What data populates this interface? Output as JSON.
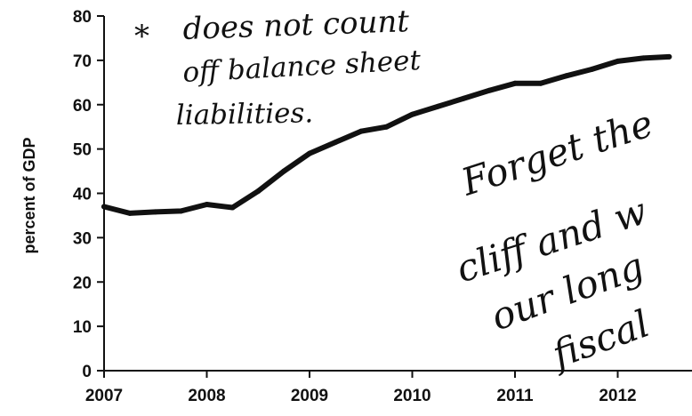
{
  "chart_data": {
    "type": "line",
    "title": "",
    "xlabel": "",
    "ylabel": "percent of GDP",
    "xlim": [
      2007,
      2012.6
    ],
    "ylim": [
      0,
      80
    ],
    "x_ticks": [
      {
        "value": 2007,
        "label": "2007"
      },
      {
        "value": 2008,
        "label": "2008"
      },
      {
        "value": 2009,
        "label": "2009"
      },
      {
        "value": 2010,
        "label": "2010"
      },
      {
        "value": 2011,
        "label": "2011"
      },
      {
        "value": 2012,
        "label": "2012"
      }
    ],
    "y_ticks": [
      {
        "value": 0,
        "label": "0"
      },
      {
        "value": 10,
        "label": "10"
      },
      {
        "value": 20,
        "label": "20"
      },
      {
        "value": 30,
        "label": "30"
      },
      {
        "value": 40,
        "label": "40"
      },
      {
        "value": 50,
        "label": "50"
      },
      {
        "value": 60,
        "label": "60"
      },
      {
        "value": 70,
        "label": "70"
      },
      {
        "value": 80,
        "label": "80"
      }
    ],
    "grid": false,
    "series": [
      {
        "points": [
          [
            2007.0,
            37.0
          ],
          [
            2007.25,
            35.5
          ],
          [
            2007.5,
            35.8
          ],
          [
            2007.75,
            36.0
          ],
          [
            2008.0,
            37.5
          ],
          [
            2008.25,
            36.8
          ],
          [
            2008.5,
            40.5
          ],
          [
            2008.75,
            45.0
          ],
          [
            2009.0,
            49.0
          ],
          [
            2009.25,
            51.5
          ],
          [
            2009.5,
            54.0
          ],
          [
            2009.75,
            55.0
          ],
          [
            2010.0,
            57.8
          ],
          [
            2010.25,
            59.6
          ],
          [
            2010.5,
            61.4
          ],
          [
            2010.75,
            63.2
          ],
          [
            2011.0,
            64.8
          ],
          [
            2011.25,
            64.8
          ],
          [
            2011.5,
            66.5
          ],
          [
            2011.75,
            68.0
          ],
          [
            2012.0,
            69.8
          ],
          [
            2012.25,
            70.5
          ],
          [
            2012.5,
            70.8
          ]
        ]
      }
    ]
  },
  "annotations": {
    "star": "*",
    "note_line1": "does not count",
    "note_line2": "off balance sheet",
    "note_line3": "liabilities.",
    "side_line1": "Forget the",
    "side_line2": "cliff and w",
    "side_line3": "our long",
    "side_line4": "fiscal"
  },
  "colors": {
    "ink": "#111111",
    "background": "#ffffff"
  }
}
